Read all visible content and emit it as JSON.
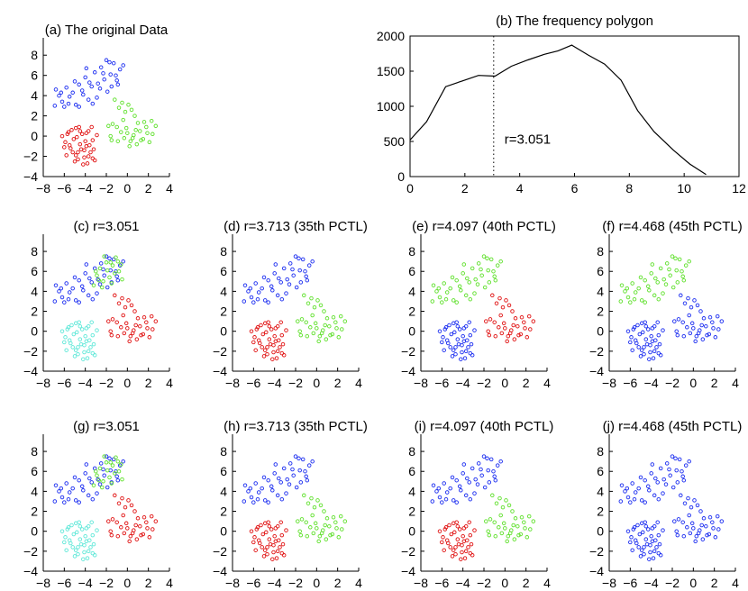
{
  "colors": {
    "blue": "#1a2cf0",
    "red": "#e01010",
    "green": "#5ee02a",
    "cyan": "#5ee8d8",
    "axis": "#000000"
  },
  "chart_data": [
    {
      "id": "a",
      "type": "scatter",
      "title": "(a) The original Data",
      "xlim": [
        -8,
        4
      ],
      "ylim": [
        -4,
        9
      ],
      "xticks": [
        -8,
        -6,
        -4,
        -2,
        0,
        2,
        4
      ],
      "yticks": [
        -4,
        -2,
        0,
        2,
        4,
        6,
        8
      ],
      "clusters": {
        "A": "blue",
        "B": "green",
        "C": "red"
      }
    },
    {
      "id": "b",
      "type": "line",
      "title": "(b) The frequency polygon",
      "xlim": [
        0,
        12
      ],
      "ylim": [
        0,
        2000
      ],
      "xticks": [
        0,
        2,
        4,
        6,
        8,
        10,
        12
      ],
      "yticks": [
        0,
        500,
        1000,
        1500,
        2000
      ],
      "x": [
        0.0,
        0.6,
        1.3,
        1.9,
        2.5,
        3.1,
        3.7,
        4.3,
        4.9,
        5.4,
        5.9,
        6.5,
        7.1,
        7.7,
        8.3,
        8.9,
        9.6,
        10.2,
        10.8
      ],
      "y": [
        520,
        780,
        1280,
        1360,
        1440,
        1430,
        1570,
        1660,
        1740,
        1790,
        1870,
        1730,
        1600,
        1370,
        940,
        640,
        380,
        180,
        30
      ],
      "vline": 3.051,
      "annotation": "r=3.051"
    },
    {
      "id": "c",
      "type": "scatter",
      "title": "(c) r=3.051",
      "xlim": [
        -8,
        4
      ],
      "ylim": [
        -4,
        9
      ],
      "xticks": [
        -8,
        -6,
        -4,
        -2,
        0,
        2,
        4
      ],
      "yticks": [
        -4,
        -2,
        0,
        2,
        4,
        6,
        8
      ],
      "clusters": {
        "A": "blue",
        "B": "red",
        "C": "cyan",
        "D": "green"
      }
    },
    {
      "id": "d",
      "type": "scatter",
      "title": "(d) r=3.713 (35th PCTL)",
      "xlim": [
        -8,
        4
      ],
      "ylim": [
        -4,
        9
      ],
      "xticks": [
        -8,
        -6,
        -4,
        -2,
        0,
        2,
        4
      ],
      "yticks": [
        -4,
        -2,
        0,
        2,
        4,
        6,
        8
      ],
      "clusters": {
        "A": "blue",
        "B": "green",
        "C": "red"
      }
    },
    {
      "id": "e",
      "type": "scatter",
      "title": "(e) r=4.097 (40th PCTL)",
      "xlim": [
        -8,
        4
      ],
      "ylim": [
        -4,
        9
      ],
      "xticks": [
        -8,
        -6,
        -4,
        -2,
        0,
        2,
        4
      ],
      "yticks": [
        -4,
        -2,
        0,
        2,
        4,
        6,
        8
      ],
      "clusters": {
        "A": "green",
        "B": "red",
        "C": "blue"
      }
    },
    {
      "id": "f",
      "type": "scatter",
      "title": "(f) r=4.468 (45th PCTL)",
      "xlim": [
        -8,
        4
      ],
      "ylim": [
        -4,
        9
      ],
      "xticks": [
        -8,
        -6,
        -4,
        -2,
        0,
        2,
        4
      ],
      "yticks": [
        -4,
        -2,
        0,
        2,
        4,
        6,
        8
      ],
      "clusters": {
        "A": "green",
        "B": "blue",
        "C": "blue"
      }
    },
    {
      "id": "g",
      "type": "scatter",
      "title": "(g) r=3.051",
      "xlim": [
        -8,
        4
      ],
      "ylim": [
        -4,
        9
      ],
      "xticks": [
        -8,
        -6,
        -4,
        -2,
        0,
        2,
        4
      ],
      "yticks": [
        -4,
        -2,
        0,
        2,
        4,
        6,
        8
      ],
      "clusters": {
        "A": "blue",
        "B": "red",
        "C": "cyan",
        "D": "green"
      }
    },
    {
      "id": "h",
      "type": "scatter",
      "title": "(h) r=3.713 (35th PCTL)",
      "xlim": [
        -8,
        4
      ],
      "ylim": [
        -4,
        9
      ],
      "xticks": [
        -8,
        -6,
        -4,
        -2,
        0,
        2,
        4
      ],
      "yticks": [
        -4,
        -2,
        0,
        2,
        4,
        6,
        8
      ],
      "clusters": {
        "A": "blue",
        "B": "green",
        "C": "red"
      }
    },
    {
      "id": "i",
      "type": "scatter",
      "title": "(i) r=4.097 (40th PCTL)",
      "xlim": [
        -8,
        4
      ],
      "ylim": [
        -4,
        9
      ],
      "xticks": [
        -8,
        -6,
        -4,
        -2,
        0,
        2,
        4
      ],
      "yticks": [
        -4,
        -2,
        0,
        2,
        4,
        6,
        8
      ],
      "clusters": {
        "A": "blue",
        "B": "green",
        "C": "red"
      }
    },
    {
      "id": "j",
      "type": "scatter",
      "title": "(j) r=4.468 (45th PCTL)",
      "xlim": [
        -8,
        4
      ],
      "ylim": [
        -4,
        9
      ],
      "xticks": [
        -8,
        -6,
        -4,
        -2,
        0,
        2,
        4
      ],
      "yticks": [
        -4,
        -2,
        0,
        2,
        4,
        6,
        8
      ],
      "clusters": {
        "A": "blue",
        "B": "blue",
        "C": "blue"
      }
    }
  ],
  "scatter_points": {
    "A": [
      [
        -6.8,
        4.6
      ],
      [
        -6.5,
        4.0
      ],
      [
        -6.2,
        3.4
      ],
      [
        -5.8,
        4.8
      ],
      [
        -5.5,
        3.9
      ],
      [
        -5.2,
        4.3
      ],
      [
        -4.9,
        3.1
      ],
      [
        -4.6,
        5.1
      ],
      [
        -4.3,
        4.5
      ],
      [
        -4.0,
        5.8
      ],
      [
        -3.7,
        3.6
      ],
      [
        -3.4,
        4.9
      ],
      [
        -3.1,
        6.3
      ],
      [
        -2.8,
        5.2
      ],
      [
        -2.5,
        6.8
      ],
      [
        -2.2,
        5.6
      ],
      [
        -1.9,
        4.4
      ],
      [
        -1.6,
        6.1
      ],
      [
        -1.3,
        7.2
      ],
      [
        -1.0,
        5.5
      ],
      [
        -0.7,
        6.6
      ],
      [
        -0.4,
        7.0
      ],
      [
        -6.9,
        3.0
      ],
      [
        -5.0,
        5.4
      ],
      [
        -3.9,
        6.7
      ],
      [
        -2.0,
        7.5
      ],
      [
        -1.5,
        4.9
      ],
      [
        -3.3,
        3.2
      ],
      [
        -4.6,
        2.9
      ],
      [
        -2.6,
        4.7
      ],
      [
        -6.0,
        2.9
      ],
      [
        -1.1,
        6.0
      ],
      [
        -2.9,
        3.8
      ],
      [
        -5.6,
        3.2
      ],
      [
        -0.9,
        5.1
      ],
      [
        -3.6,
        5.3
      ],
      [
        -4.2,
        4.1
      ],
      [
        -2.3,
        6.2
      ],
      [
        -1.7,
        7.3
      ],
      [
        -6.3,
        4.3
      ]
    ],
    "B": [
      [
        -1.2,
        3.6
      ],
      [
        -0.8,
        2.8
      ],
      [
        -0.5,
        3.3
      ],
      [
        -0.2,
        2.4
      ],
      [
        0.1,
        3.1
      ],
      [
        0.4,
        2.6
      ],
      [
        -1.4,
        1.2
      ],
      [
        -1.0,
        0.9
      ],
      [
        -0.6,
        0.4
      ],
      [
        -0.3,
        -0.2
      ],
      [
        0.0,
        0.3
      ],
      [
        0.3,
        -0.5
      ],
      [
        0.6,
        0.1
      ],
      [
        0.9,
        -0.8
      ],
      [
        1.2,
        0.5
      ],
      [
        1.5,
        -0.3
      ],
      [
        1.8,
        0.9
      ],
      [
        2.1,
        -0.6
      ],
      [
        2.4,
        0.2
      ],
      [
        2.7,
        1.0
      ],
      [
        -1.6,
        0.0
      ],
      [
        -0.9,
        -0.5
      ],
      [
        0.2,
        -1.0
      ],
      [
        1.0,
        1.3
      ],
      [
        -0.4,
        1.6
      ],
      [
        0.7,
        2.0
      ],
      [
        1.6,
        1.4
      ],
      [
        -1.8,
        1.0
      ],
      [
        2.3,
        1.5
      ],
      [
        0.5,
        -0.2
      ],
      [
        -0.1,
        0.8
      ],
      [
        1.3,
        -0.4
      ],
      [
        -1.5,
        -0.4
      ],
      [
        0.8,
        0.6
      ],
      [
        1.9,
        0.3
      ]
    ],
    "C": [
      [
        -6.2,
        0.0
      ],
      [
        -5.9,
        -0.6
      ],
      [
        -5.6,
        0.4
      ],
      [
        -5.4,
        -1.2
      ],
      [
        -5.1,
        -0.3
      ],
      [
        -4.9,
        0.8
      ],
      [
        -4.7,
        -1.6
      ],
      [
        -4.5,
        -0.8
      ],
      [
        -4.3,
        0.2
      ],
      [
        -4.1,
        -2.1
      ],
      [
        -3.9,
        -1.0
      ],
      [
        -3.7,
        0.5
      ],
      [
        -3.5,
        -1.6
      ],
      [
        -3.3,
        -0.4
      ],
      [
        -3.1,
        -2.4
      ],
      [
        -2.9,
        0.1
      ],
      [
        -5.8,
        -1.9
      ],
      [
        -5.0,
        -2.5
      ],
      [
        -4.6,
        0.9
      ],
      [
        -3.8,
        -2.7
      ],
      [
        -4.4,
        -1.3
      ],
      [
        -5.3,
        0.6
      ],
      [
        -3.6,
        -0.9
      ],
      [
        -4.8,
        -0.1
      ],
      [
        -6.0,
        -1.1
      ],
      [
        -3.2,
        -1.3
      ],
      [
        -4.2,
        -2.8
      ],
      [
        -5.5,
        -0.9
      ],
      [
        -3.4,
        0.9
      ],
      [
        -4.0,
        -0.5
      ],
      [
        -4.9,
        -1.9
      ],
      [
        -3.7,
        -2.0
      ],
      [
        -5.7,
        0.2
      ],
      [
        -4.5,
        0.5
      ],
      [
        -3.9,
        0.3
      ],
      [
        -5.2,
        -1.6
      ],
      [
        -4.1,
        -1.4
      ],
      [
        -3.3,
        -2.2
      ],
      [
        -4.7,
        -2.3
      ]
    ],
    "D": [
      [
        -2.9,
        5.6
      ],
      [
        -2.6,
        6.3
      ],
      [
        -2.3,
        5.0
      ],
      [
        -2.0,
        6.9
      ],
      [
        -1.7,
        5.4
      ],
      [
        -1.4,
        6.6
      ],
      [
        -1.1,
        7.4
      ],
      [
        -0.8,
        6.0
      ],
      [
        -0.5,
        5.2
      ],
      [
        -3.2,
        4.6
      ],
      [
        -2.4,
        4.4
      ],
      [
        -1.5,
        4.8
      ],
      [
        -0.9,
        7.0
      ],
      [
        -1.9,
        6.1
      ],
      [
        -2.7,
        5.1
      ],
      [
        -1.2,
        5.8
      ],
      [
        -0.6,
        6.7
      ],
      [
        -2.2,
        7.5
      ],
      [
        -1.6,
        6.9
      ],
      [
        -3.0,
        6.0
      ]
    ]
  }
}
